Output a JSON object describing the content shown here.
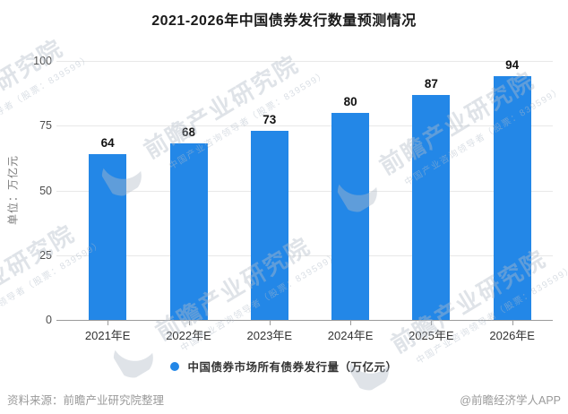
{
  "title": "2021-2026年中国债券发行数量预测情况",
  "chart_data": {
    "type": "bar",
    "categories": [
      "2021年E",
      "2022年E",
      "2023年E",
      "2024年E",
      "2025年E",
      "2026年E"
    ],
    "values": [
      64,
      68,
      73,
      80,
      87,
      94
    ],
    "title": "2021-2026年中国债券发行数量预测情况",
    "xlabel": "",
    "ylabel": "单位：万亿元",
    "ylim": [
      0,
      100
    ],
    "yticks": [
      0,
      25,
      50,
      75,
      100
    ],
    "grid": true,
    "bar_color": "#2387e7",
    "legend_entries": [
      "中国债券市场所有债券发行量（万亿元）"
    ],
    "legend_position": "bottom"
  },
  "y_axis": {
    "unit": "单位：万亿元"
  },
  "legend": {
    "label": "中国债券市场所有债券发行量（万亿元）",
    "dot_color": "#2387e7"
  },
  "footer": {
    "source": "资料来源：前瞻产业研究院整理",
    "credit": "@前瞻经济学人APP"
  },
  "watermark": {
    "big_text": "前瞻产业研究院",
    "small_text": "中国产业咨询领导者（股票：839599）"
  }
}
